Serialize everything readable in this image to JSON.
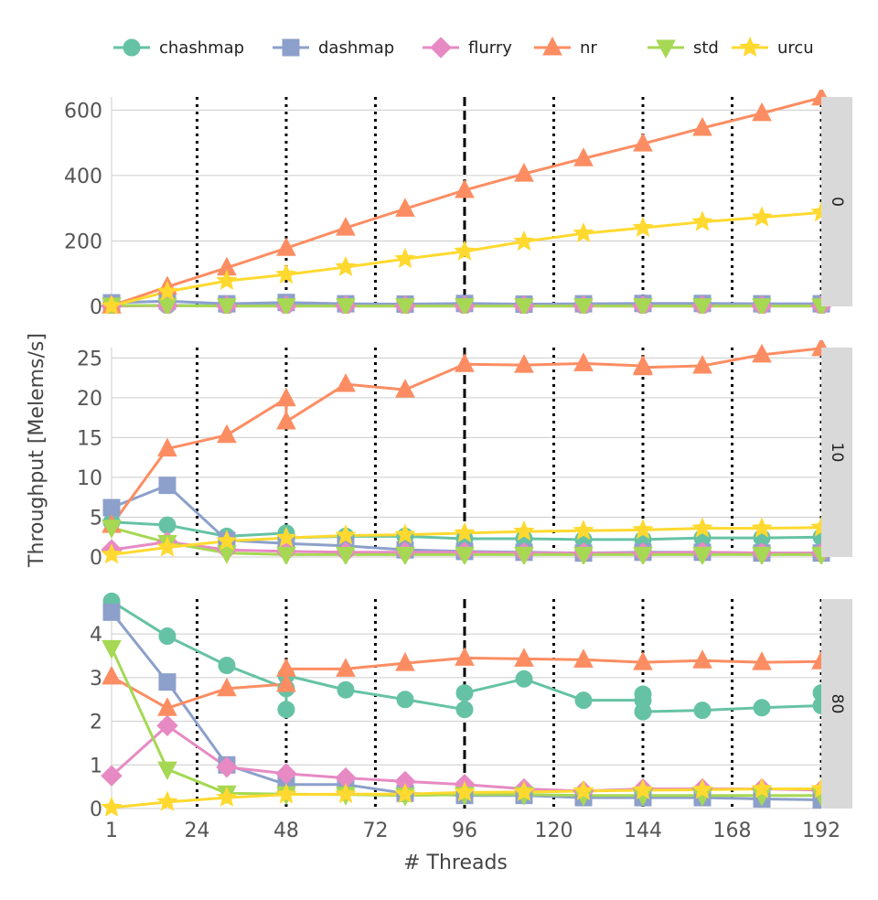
{
  "chart_data": {
    "type": "line",
    "xlabel": "# Threads",
    "ylabel": "Throughput [Melems/s]",
    "x_ticks": [
      1,
      24,
      48,
      72,
      96,
      120,
      144,
      168,
      192
    ],
    "dotted_vlines": [
      24,
      48,
      72,
      120,
      144,
      168,
      192
    ],
    "dashed_vline": 96,
    "legend": [
      {
        "name": "chashmap",
        "color": "#66c2a5",
        "marker": "circle"
      },
      {
        "name": "dashmap",
        "color": "#8da0cb",
        "marker": "square"
      },
      {
        "name": "flurry",
        "color": "#e78ac3",
        "marker": "diamond"
      },
      {
        "name": "nr",
        "color": "#fc8d62",
        "marker": "triangle-up"
      },
      {
        "name": "std",
        "color": "#a6d854",
        "marker": "triangle-down"
      },
      {
        "name": "urcu",
        "color": "#ffd92f",
        "marker": "star"
      }
    ],
    "panels": [
      {
        "strip": "0",
        "ylim": [
          0,
          640
        ],
        "y_ticks": [
          0,
          200,
          400,
          600
        ],
        "series": [
          {
            "name": "chashmap",
            "x": [
              1,
              16,
              32,
              48,
              64,
              80,
              96,
              112,
              128,
              144,
              160,
              176,
              192
            ],
            "y": [
              2,
              3,
              2,
              4,
              3,
              2,
              3,
              2,
              2,
              3,
              3,
              3,
              3
            ]
          },
          {
            "name": "dashmap",
            "x": [
              1,
              16,
              32,
              48,
              64,
              80,
              96,
              112,
              128,
              144,
              160,
              176,
              192
            ],
            "y": [
              11,
              16,
              8,
              12,
              8,
              7,
              9,
              7,
              8,
              9,
              9,
              8,
              8
            ]
          },
          {
            "name": "flurry",
            "x": [
              1,
              16,
              32,
              48,
              64,
              80,
              96,
              112,
              128,
              144,
              160,
              176,
              192
            ],
            "y": [
              1,
              2,
              1,
              1,
              1,
              1,
              1,
              1,
              1,
              1,
              1,
              1,
              1
            ]
          },
          {
            "name": "nr",
            "x": [
              1,
              16,
              32,
              48,
              64,
              80,
              96,
              112,
              128,
              144,
              160,
              176,
              192
            ],
            "y": [
              2,
              60,
              118,
              178,
              240,
              298,
              355,
              405,
              452,
              497,
              545,
              590,
              638
            ]
          },
          {
            "name": "std",
            "x": [
              1,
              16,
              32,
              48,
              64,
              80,
              96,
              112,
              128,
              144,
              160,
              176,
              192
            ],
            "y": [
              3,
              2,
              1,
              1,
              1,
              1,
              1,
              1,
              1,
              1,
              1,
              1,
              1
            ]
          },
          {
            "name": "urcu",
            "x": [
              1,
              16,
              32,
              48,
              64,
              80,
              96,
              112,
              128,
              144,
              160,
              176,
              192
            ],
            "y": [
              1,
              45,
              78,
              97,
              120,
              145,
              168,
              198,
              223,
              240,
              258,
              272,
              287
            ]
          }
        ]
      },
      {
        "strip": "10",
        "ylim": [
          0,
          26.3
        ],
        "y_ticks": [
          0,
          5,
          10,
          15,
          20,
          25
        ],
        "series": [
          {
            "name": "chashmap",
            "x": [
              1,
              16,
              32,
              48,
              48,
              64,
              80,
              96,
              112,
              128,
              144,
              160,
              176,
              192
            ],
            "y": [
              4.4,
              4.0,
              2.6,
              3.0,
              2.4,
              2.6,
              2.6,
              2.3,
              2.3,
              2.2,
              2.2,
              2.4,
              2.4,
              2.5
            ]
          },
          {
            "name": "dashmap",
            "x": [
              1,
              16,
              32,
              48,
              64,
              80,
              96,
              112,
              128,
              144,
              160,
              176,
              192
            ],
            "y": [
              6.2,
              9.0,
              2.1,
              1.7,
              1.4,
              0.9,
              0.7,
              0.6,
              0.5,
              0.6,
              0.6,
              0.5,
              0.5
            ]
          },
          {
            "name": "flurry",
            "x": [
              1,
              16,
              32,
              48,
              64,
              80,
              96,
              112,
              128,
              144,
              160,
              176,
              192
            ],
            "y": [
              0.9,
              1.9,
              0.9,
              0.7,
              0.6,
              0.6,
              0.6,
              0.5,
              0.5,
              0.5,
              0.6,
              0.5,
              0.5
            ]
          },
          {
            "name": "nr",
            "x": [
              1,
              16,
              32,
              48,
              48,
              64,
              80,
              96,
              112,
              128,
              144,
              144,
              160,
              176,
              192
            ],
            "y": [
              4.0,
              13.6,
              15.3,
              19.9,
              17.0,
              21.7,
              21.0,
              24.2,
              24.1,
              24.3,
              24.0,
              23.8,
              24.0,
              25.4,
              26.2
            ]
          },
          {
            "name": "std",
            "x": [
              1,
              16,
              32,
              48,
              64,
              80,
              96,
              112,
              128,
              144,
              160,
              176,
              192
            ],
            "y": [
              3.7,
              1.8,
              0.5,
              0.3,
              0.3,
              0.3,
              0.3,
              0.3,
              0.3,
              0.3,
              0.3,
              0.3,
              0.3
            ]
          },
          {
            "name": "urcu",
            "x": [
              1,
              16,
              32,
              48,
              64,
              80,
              96,
              112,
              128,
              144,
              160,
              176,
              192
            ],
            "y": [
              0.3,
              1.2,
              2.0,
              2.4,
              2.7,
              2.8,
              3.0,
              3.2,
              3.3,
              3.4,
              3.6,
              3.6,
              3.7
            ]
          }
        ]
      },
      {
        "strip": "80",
        "ylim": [
          0,
          4.8
        ],
        "y_ticks": [
          0,
          1,
          2,
          3,
          4
        ],
        "series": [
          {
            "name": "chashmap",
            "x": [
              1,
              16,
              32,
              48,
              48,
              48,
              64,
              80,
              96,
              96,
              112,
              128,
              144,
              144,
              144,
              160,
              176,
              192,
              192
            ],
            "y": [
              4.75,
              3.95,
              3.28,
              2.75,
              2.27,
              3.05,
              2.72,
              2.5,
              2.27,
              2.65,
              2.97,
              2.48,
              2.48,
              2.62,
              2.22,
              2.25,
              2.31,
              2.36,
              2.65
            ]
          },
          {
            "name": "dashmap",
            "x": [
              1,
              16,
              32,
              48,
              64,
              80,
              96,
              112,
              128,
              144,
              160,
              176,
              192
            ],
            "y": [
              4.5,
              2.9,
              1.0,
              0.55,
              0.55,
              0.35,
              0.3,
              0.3,
              0.25,
              0.25,
              0.25,
              0.22,
              0.2
            ]
          },
          {
            "name": "flurry",
            "x": [
              1,
              16,
              32,
              48,
              64,
              80,
              96,
              112,
              128,
              144,
              160,
              176,
              192
            ],
            "y": [
              0.75,
              1.9,
              0.95,
              0.8,
              0.7,
              0.62,
              0.55,
              0.45,
              0.4,
              0.45,
              0.45,
              0.45,
              0.42
            ]
          },
          {
            "name": "nr",
            "x": [
              1,
              16,
              32,
              48,
              48,
              64,
              80,
              96,
              112,
              128,
              144,
              160,
              176,
              192
            ],
            "y": [
              3.02,
              2.3,
              2.75,
              2.85,
              3.2,
              3.2,
              3.33,
              3.45,
              3.43,
              3.41,
              3.35,
              3.39,
              3.35,
              3.37
            ]
          },
          {
            "name": "std",
            "x": [
              1,
              16,
              32,
              48,
              64,
              80,
              96,
              112,
              128,
              144,
              160,
              176,
              192
            ],
            "y": [
              3.68,
              0.9,
              0.35,
              0.33,
              0.32,
              0.3,
              0.32,
              0.32,
              0.3,
              0.3,
              0.3,
              0.3,
              0.3
            ]
          },
          {
            "name": "urcu",
            "x": [
              1,
              16,
              32,
              48,
              64,
              80,
              96,
              112,
              128,
              144,
              160,
              176,
              192
            ],
            "y": [
              0.02,
              0.15,
              0.25,
              0.32,
              0.33,
              0.33,
              0.37,
              0.38,
              0.4,
              0.42,
              0.43,
              0.45,
              0.45
            ]
          }
        ]
      }
    ]
  }
}
